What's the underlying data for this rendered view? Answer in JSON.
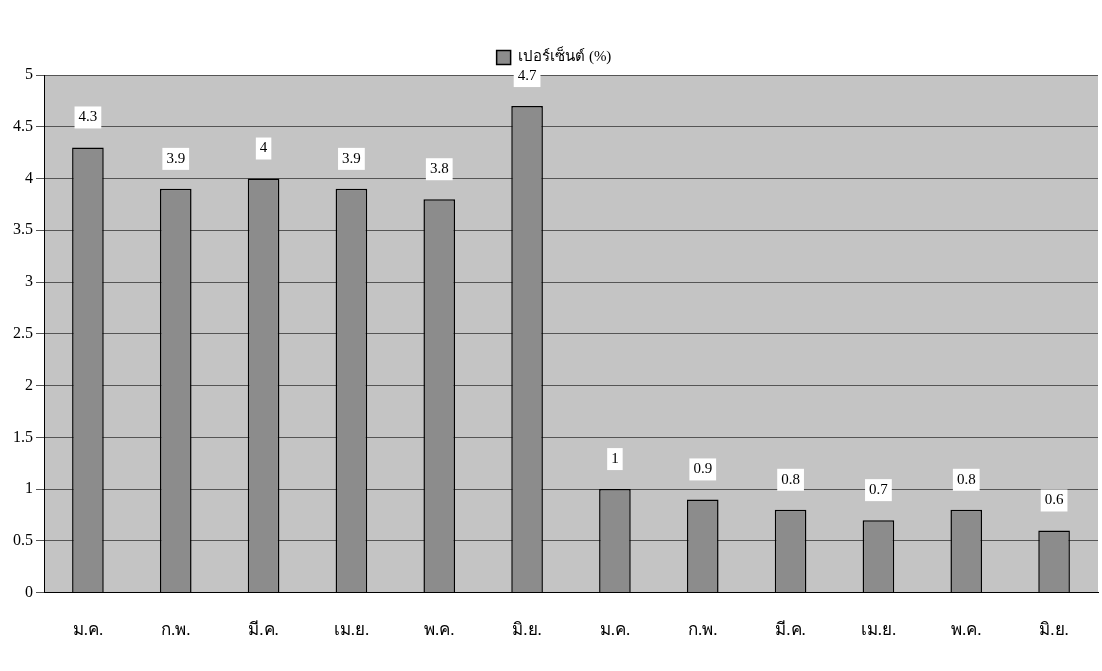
{
  "chart_data": {
    "type": "bar",
    "categories": [
      "ม.ค.",
      "ก.พ.",
      "มี.ค.",
      "เม.ย.",
      "พ.ค.",
      "มิ.ย.",
      "ม.ค.",
      "ก.พ.",
      "มี.ค.",
      "เม.ย.",
      "พ.ค.",
      "มิ.ย."
    ],
    "series": [
      {
        "name": "เปอร์เซ็นต์ (%)",
        "color": "#8c8c8c",
        "values": [
          4.3,
          3.9,
          4,
          3.9,
          3.8,
          4.7,
          1,
          0.9,
          0.8,
          0.7,
          0.8,
          0.6
        ]
      }
    ],
    "ylim": [
      0,
      5
    ],
    "yticks": [
      0,
      0.5,
      1,
      1.5,
      2,
      2.5,
      3,
      3.5,
      4,
      4.5,
      5
    ],
    "grid": "y",
    "legend": "top",
    "data_labels": true
  }
}
